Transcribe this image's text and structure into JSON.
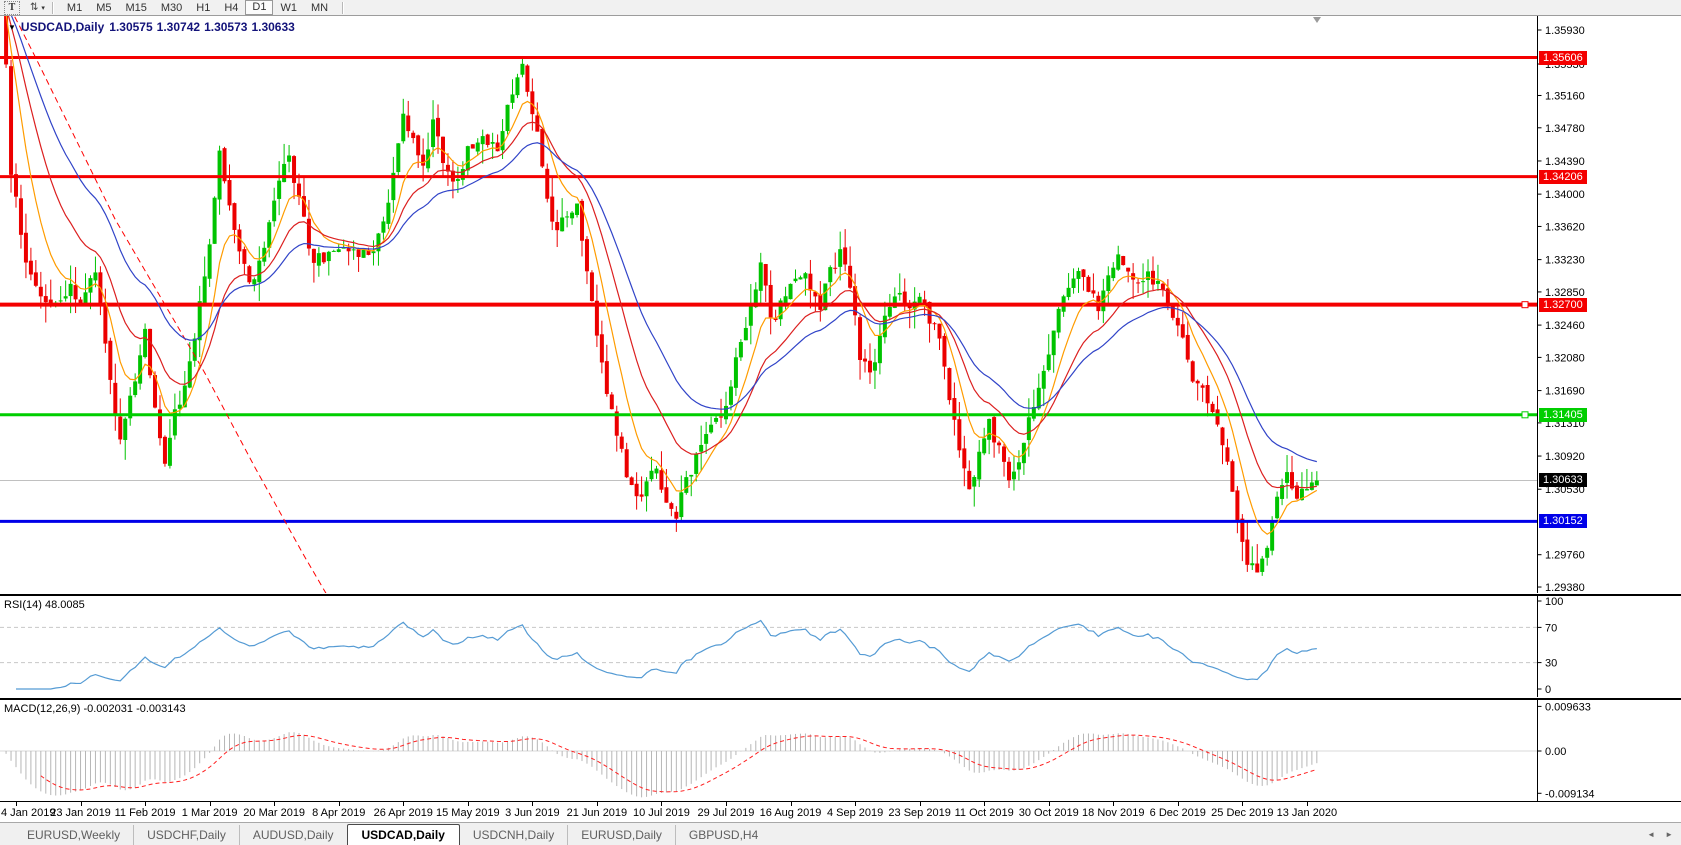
{
  "toolbar": {
    "tools": [
      {
        "name": "text-tool",
        "glyph": "T"
      },
      {
        "name": "arrange-tool",
        "glyph": "⇅",
        "caret": "▾"
      }
    ],
    "timeframes": [
      "M1",
      "M5",
      "M15",
      "M30",
      "H1",
      "H4",
      "D1",
      "W1",
      "MN"
    ],
    "active_timeframe": "D1"
  },
  "chart_header": {
    "collapse_icon": "▼",
    "symbol": "USDCAD,Daily",
    "open": "1.30575",
    "high": "1.30742",
    "low": "1.30573",
    "close": "1.30633"
  },
  "price_axis": {
    "ticks": [
      "1.35930",
      "1.35530",
      "1.35160",
      "1.34780",
      "1.34390",
      "1.34000",
      "1.33620",
      "1.33230",
      "1.32850",
      "1.32460",
      "1.32080",
      "1.31690",
      "1.31310",
      "1.30920",
      "1.30530",
      "1.29760",
      "1.29380"
    ]
  },
  "hlines": [
    {
      "label": "1.35606",
      "price": 1.35606,
      "color": "#f40000",
      "width": 3,
      "handle": false
    },
    {
      "label": "1.34206",
      "price": 1.34206,
      "color": "#f40000",
      "width": 3,
      "handle": false
    },
    {
      "label": "1.32700",
      "price": 1.327,
      "color": "#f40000",
      "width": 4,
      "handle": true
    },
    {
      "label": "1.31405",
      "price": 1.31405,
      "color": "#00ce00",
      "width": 3,
      "handle": true
    },
    {
      "label": "1.30152",
      "price": 1.30152,
      "color": "#0000e8",
      "width": 3,
      "handle": false
    }
  ],
  "current_price": {
    "label": "1.30633",
    "price": 1.30633,
    "line_color": "#c0c0c0",
    "badge_bg": "#000000"
  },
  "rsi_panel": {
    "label": "RSI(14) 48.0085",
    "value": 48.0085,
    "axis_labels": [
      "100",
      "70",
      "30",
      "0"
    ],
    "axis_values": [
      100,
      70,
      30,
      0
    ],
    "dashed_levels": [
      70,
      30
    ],
    "line_color": "#559bd4",
    "level_color": "#c8c8c8"
  },
  "macd_panel": {
    "label": "MACD(12,26,9) -0.002031 -0.003143",
    "macd_value": -0.002031,
    "signal_value": -0.003143,
    "axis_labels": [
      "0.009633",
      "0.00",
      "-0.009134"
    ],
    "axis_values": [
      0.009633,
      0,
      -0.009134
    ],
    "histogram_color": "#b6b6b6",
    "signal_color": "#ff2020"
  },
  "date_axis": {
    "labels": [
      "4 Jan 2019",
      "23 Jan 2019",
      "11 Feb 2019",
      "1 Mar 2019",
      "20 Mar 2019",
      "8 Apr 2019",
      "26 Apr 2019",
      "15 May 2019",
      "3 Jun 2019",
      "21 Jun 2019",
      "10 Jul 2019",
      "29 Jul 2019",
      "16 Aug 2019",
      "4 Sep 2019",
      "23 Sep 2019",
      "11 Oct 2019",
      "30 Oct 2019",
      "18 Nov 2019",
      "6 Dec 2019",
      "25 Dec 2019",
      "13 Jan 2020"
    ],
    "label_day_step": 13
  },
  "tabs": [
    {
      "label": "EURUSD,Weekly",
      "active": false
    },
    {
      "label": "USDCHF,Daily",
      "active": false
    },
    {
      "label": "AUDUSD,Daily",
      "active": false
    },
    {
      "label": "USDCAD,Daily",
      "active": true
    },
    {
      "label": "USDCNH,Daily",
      "active": false
    },
    {
      "label": "EURUSD,Daily",
      "active": false
    },
    {
      "label": "GBPUSD,H4",
      "active": false
    }
  ],
  "tab_scroll": {
    "left_icon": "◄",
    "right_icon": "►"
  },
  "chart_data": {
    "type": "candlestick",
    "symbol": "USDCAD",
    "timeframe": "Daily",
    "visible_range": {
      "start": "4 Jan 2019",
      "end": "13 Jan 2020"
    },
    "price_range": {
      "top": 1.3593,
      "bottom": 1.2938
    },
    "bull_color": "#00c300",
    "bear_color": "#ec0000",
    "ma_colors": {
      "fast": "#ff9c00",
      "mid": "#dc2020",
      "slow": "#3144c8",
      "dashed": "#ff0000"
    },
    "close_anchors": [
      [
        -3,
        1.3635
      ],
      [
        -2,
        1.356
      ],
      [
        -1,
        1.343
      ],
      [
        0,
        1.339
      ],
      [
        2,
        1.332
      ],
      [
        5,
        1.3285
      ],
      [
        8,
        1.327
      ],
      [
        11,
        1.329
      ],
      [
        13,
        1.3275
      ],
      [
        16,
        1.331
      ],
      [
        19,
        1.318
      ],
      [
        21,
        1.311
      ],
      [
        23,
        1.316
      ],
      [
        26,
        1.324
      ],
      [
        28,
        1.315
      ],
      [
        30,
        1.309
      ],
      [
        32,
        1.314
      ],
      [
        35,
        1.32
      ],
      [
        38,
        1.33
      ],
      [
        41,
        1.3445
      ],
      [
        43,
        1.338
      ],
      [
        45,
        1.333
      ],
      [
        47,
        1.329
      ],
      [
        50,
        1.334
      ],
      [
        53,
        1.342
      ],
      [
        55,
        1.344
      ],
      [
        57,
        1.339
      ],
      [
        60,
        1.332
      ],
      [
        63,
        1.333
      ],
      [
        66,
        1.3345
      ],
      [
        69,
        1.3325
      ],
      [
        72,
        1.334
      ],
      [
        75,
        1.339
      ],
      [
        78,
        1.35
      ],
      [
        80,
        1.346
      ],
      [
        82,
        1.343
      ],
      [
        84,
        1.348
      ],
      [
        86,
        1.344
      ],
      [
        88,
        1.341
      ],
      [
        91,
        1.345
      ],
      [
        94,
        1.347
      ],
      [
        97,
        1.345
      ],
      [
        99,
        1.35
      ],
      [
        101,
        1.353
      ],
      [
        102,
        1.3555
      ],
      [
        103,
        1.352
      ],
      [
        105,
        1.348
      ],
      [
        107,
        1.339
      ],
      [
        109,
        1.336
      ],
      [
        111,
        1.338
      ],
      [
        113,
        1.339
      ],
      [
        115,
        1.331
      ],
      [
        117,
        1.323
      ],
      [
        119,
        1.317
      ],
      [
        121,
        1.312
      ],
      [
        123,
        1.307
      ],
      [
        125,
        1.304
      ],
      [
        127,
        1.306
      ],
      [
        129,
        1.308
      ],
      [
        131,
        1.304
      ],
      [
        133,
        1.3025
      ],
      [
        135,
        1.306
      ],
      [
        137,
        1.309
      ],
      [
        139,
        1.312
      ],
      [
        141,
        1.313
      ],
      [
        143,
        1.315
      ],
      [
        145,
        1.321
      ],
      [
        147,
        1.325
      ],
      [
        149,
        1.329
      ],
      [
        150,
        1.332
      ],
      [
        152,
        1.325
      ],
      [
        154,
        1.327
      ],
      [
        156,
        1.329
      ],
      [
        158,
        1.331
      ],
      [
        160,
        1.329
      ],
      [
        162,
        1.327
      ],
      [
        164,
        1.331
      ],
      [
        166,
        1.333
      ],
      [
        168,
        1.329
      ],
      [
        170,
        1.321
      ],
      [
        172,
        1.319
      ],
      [
        174,
        1.323
      ],
      [
        176,
        1.327
      ],
      [
        178,
        1.329
      ],
      [
        180,
        1.326
      ],
      [
        182,
        1.328
      ],
      [
        184,
        1.325
      ],
      [
        186,
        1.323
      ],
      [
        188,
        1.316
      ],
      [
        190,
        1.31
      ],
      [
        192,
        1.306
      ],
      [
        194,
        1.309
      ],
      [
        196,
        1.313
      ],
      [
        198,
        1.31
      ],
      [
        200,
        1.307
      ],
      [
        202,
        1.309
      ],
      [
        204,
        1.313
      ],
      [
        206,
        1.317
      ],
      [
        208,
        1.321
      ],
      [
        210,
        1.326
      ],
      [
        212,
        1.329
      ],
      [
        214,
        1.331
      ],
      [
        216,
        1.329
      ],
      [
        218,
        1.327
      ],
      [
        220,
        1.33
      ],
      [
        222,
        1.333
      ],
      [
        224,
        1.331
      ],
      [
        226,
        1.329
      ],
      [
        228,
        1.331
      ],
      [
        230,
        1.329
      ],
      [
        232,
        1.327
      ],
      [
        234,
        1.325
      ],
      [
        236,
        1.32
      ],
      [
        238,
        1.317
      ],
      [
        240,
        1.316
      ],
      [
        242,
        1.313
      ],
      [
        244,
        1.309
      ],
      [
        246,
        1.302
      ],
      [
        248,
        1.297
      ],
      [
        250,
        1.2955
      ],
      [
        252,
        1.2985
      ],
      [
        254,
        1.304
      ],
      [
        256,
        1.307
      ],
      [
        258,
        1.304
      ],
      [
        260,
        1.3055
      ],
      [
        262,
        1.30633
      ]
    ],
    "dashed_ma_anchors": [
      [
        -3,
        1.364
      ],
      [
        4,
        1.356
      ],
      [
        12,
        1.3465
      ],
      [
        20,
        1.337
      ],
      [
        28,
        1.329
      ],
      [
        38,
        1.319
      ],
      [
        48,
        1.308
      ],
      [
        58,
        1.2975
      ],
      [
        64,
        1.2915
      ]
    ],
    "overrides": {
      "102": {
        "high": 1.35606
      },
      "262": {
        "open": 1.30575,
        "high": 1.30742,
        "low": 1.30573,
        "close": 1.30633
      }
    }
  }
}
